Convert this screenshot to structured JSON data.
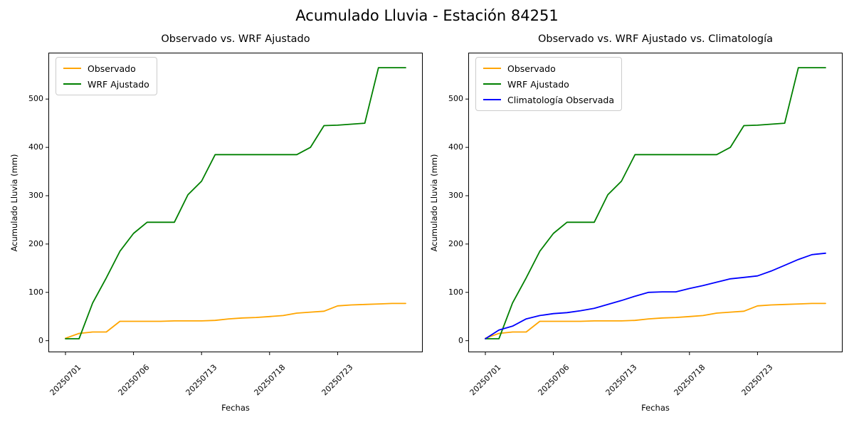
{
  "figure": {
    "title": "Acumulado Lluvia - Estación 84251",
    "background_color": "#ffffff",
    "text_color": "#000000",
    "spine_color": "#000000"
  },
  "chart_data": [
    {
      "type": "line",
      "title": "Observado vs. WRF Ajustado",
      "xlabel": "Fechas",
      "ylabel": "Acumulado Lluvia (mm)",
      "grid": false,
      "legend_position": "upper left",
      "n_points": 26,
      "x_tick_indices": [
        0,
        5,
        10,
        15,
        20
      ],
      "x_tick_labels": [
        "20250701",
        "20250706",
        "20250713",
        "20250718",
        "20250723"
      ],
      "x_tick_rotation": 45,
      "yticks": [
        0,
        100,
        200,
        300,
        400,
        500
      ],
      "ylim": [
        -24,
        596
      ],
      "series": [
        {
          "name": "Observado",
          "color": "#FFA500",
          "values": [
            5,
            15,
            18,
            18,
            40,
            40,
            40,
            40,
            41,
            41,
            41,
            42,
            45,
            47,
            48,
            50,
            52,
            57,
            59,
            61,
            72,
            74,
            75,
            76,
            77,
            77
          ]
        },
        {
          "name": "WRF Ajustado",
          "color": "#008000",
          "values": [
            4,
            4,
            78,
            130,
            185,
            222,
            245,
            245,
            245,
            302,
            330,
            385,
            385,
            385,
            385,
            385,
            385,
            385,
            400,
            445,
            446,
            448,
            450,
            565,
            565,
            565
          ]
        }
      ]
    },
    {
      "type": "line",
      "title": "Observado vs. WRF Ajustado vs. Climatología",
      "xlabel": "Fechas",
      "ylabel": "Acumulado Lluvia (mm)",
      "grid": false,
      "legend_position": "upper left",
      "n_points": 26,
      "x_tick_indices": [
        0,
        5,
        10,
        15,
        20
      ],
      "x_tick_labels": [
        "20250701",
        "20250706",
        "20250713",
        "20250718",
        "20250723"
      ],
      "x_tick_rotation": 45,
      "yticks": [
        0,
        100,
        200,
        300,
        400,
        500
      ],
      "ylim": [
        -24,
        596
      ],
      "series": [
        {
          "name": "Observado",
          "color": "#FFA500",
          "values": [
            5,
            15,
            18,
            18,
            40,
            40,
            40,
            40,
            41,
            41,
            41,
            42,
            45,
            47,
            48,
            50,
            52,
            57,
            59,
            61,
            72,
            74,
            75,
            76,
            77,
            77
          ]
        },
        {
          "name": "WRF Ajustado",
          "color": "#008000",
          "values": [
            4,
            4,
            78,
            130,
            185,
            222,
            245,
            245,
            245,
            302,
            330,
            385,
            385,
            385,
            385,
            385,
            385,
            385,
            400,
            445,
            446,
            448,
            450,
            565,
            565,
            565
          ]
        },
        {
          "name": "Climatología Observada",
          "color": "#0000FF",
          "values": [
            4,
            22,
            30,
            45,
            52,
            56,
            58,
            62,
            67,
            75,
            83,
            92,
            100,
            101,
            101,
            108,
            114,
            121,
            128,
            131,
            134,
            144,
            156,
            168,
            178,
            181
          ]
        }
      ]
    }
  ]
}
